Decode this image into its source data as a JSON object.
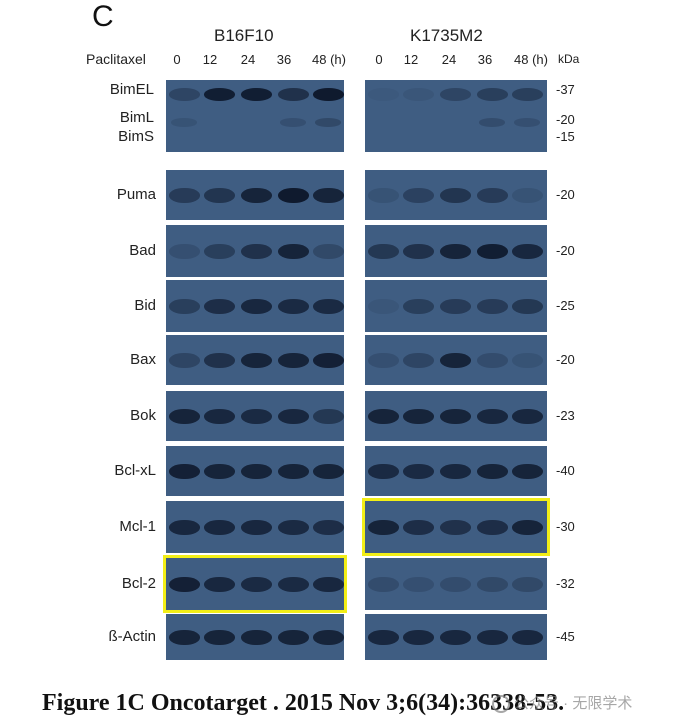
{
  "figure": {
    "panel_letter": "C",
    "treatment_label": "Paclitaxel",
    "unit_label": "kDa",
    "cell_lines": [
      {
        "name": "B16F10",
        "timepoints": [
          "0",
          "12",
          "24",
          "36",
          "48 (h)"
        ]
      },
      {
        "name": "K1735M2",
        "timepoints": [
          "0",
          "12",
          "24",
          "36",
          "48 (h)"
        ]
      }
    ],
    "rows": [
      {
        "labels": [
          "BimEL",
          "BimL",
          "BimS"
        ],
        "mw": [
          "-37",
          "-20",
          "-15"
        ]
      },
      {
        "labels": [
          "Puma"
        ],
        "mw": [
          "-20"
        ]
      },
      {
        "labels": [
          "Bad"
        ],
        "mw": [
          "-20"
        ]
      },
      {
        "labels": [
          "Bid"
        ],
        "mw": [
          "-25"
        ]
      },
      {
        "labels": [
          "Bax"
        ],
        "mw": [
          "-20"
        ]
      },
      {
        "labels": [
          "Bok"
        ],
        "mw": [
          "-23"
        ]
      },
      {
        "labels": [
          "Bcl-xL"
        ],
        "mw": [
          "-40"
        ]
      },
      {
        "labels": [
          "Mcl-1"
        ],
        "mw": [
          "-30"
        ]
      },
      {
        "labels": [
          "Bcl-2"
        ],
        "mw": [
          "-32"
        ]
      },
      {
        "labels": [
          "ß-Actin"
        ],
        "mw": [
          "-45"
        ]
      }
    ],
    "band_intensity": {
      "BimEL": {
        "B16F10": [
          0.35,
          0.95,
          0.95,
          0.65,
          1.0
        ],
        "K1735M2": [
          0.05,
          0.1,
          0.35,
          0.45,
          0.45
        ]
      },
      "BimL": {
        "B16F10": [
          0.15,
          0.0,
          0.0,
          0.2,
          0.3
        ],
        "K1735M2": [
          0.0,
          0.0,
          0.0,
          0.25,
          0.2
        ]
      },
      "Puma": {
        "B16F10": [
          0.5,
          0.6,
          0.85,
          1.0,
          0.85
        ],
        "K1735M2": [
          0.15,
          0.4,
          0.6,
          0.5,
          0.15
        ]
      },
      "Bad": {
        "B16F10": [
          0.2,
          0.45,
          0.65,
          0.85,
          0.3
        ],
        "K1735M2": [
          0.55,
          0.65,
          0.85,
          0.95,
          0.8
        ]
      },
      "Bid": {
        "B16F10": [
          0.45,
          0.7,
          0.8,
          0.75,
          0.75
        ],
        "K1735M2": [
          0.1,
          0.45,
          0.5,
          0.5,
          0.55
        ]
      },
      "Bax": {
        "B16F10": [
          0.35,
          0.65,
          0.85,
          0.85,
          0.9
        ],
        "K1735M2": [
          0.2,
          0.35,
          0.85,
          0.25,
          0.15
        ]
      },
      "Bok": {
        "B16F10": [
          0.85,
          0.8,
          0.75,
          0.8,
          0.55
        ],
        "K1735M2": [
          0.85,
          0.85,
          0.85,
          0.8,
          0.8
        ]
      },
      "Bcl-xL": {
        "B16F10": [
          0.9,
          0.85,
          0.85,
          0.85,
          0.85
        ],
        "K1735M2": [
          0.75,
          0.75,
          0.8,
          0.85,
          0.85
        ]
      },
      "Mcl-1": {
        "B16F10": [
          0.8,
          0.8,
          0.8,
          0.75,
          0.7
        ],
        "K1735M2": [
          0.85,
          0.7,
          0.65,
          0.7,
          0.85
        ]
      },
      "Bcl-2": {
        "B16F10": [
          0.9,
          0.8,
          0.75,
          0.75,
          0.8
        ],
        "K1735M2": [
          0.25,
          0.2,
          0.25,
          0.3,
          0.3
        ]
      },
      "ß-Actin": {
        "B16F10": [
          0.85,
          0.85,
          0.85,
          0.85,
          0.85
        ],
        "K1735M2": [
          0.8,
          0.8,
          0.8,
          0.8,
          0.8
        ]
      }
    },
    "highlighted": [
      {
        "row": "Mcl-1",
        "cell_line": "K1735M2"
      },
      {
        "row": "Bcl-2",
        "cell_line": "B16F10"
      }
    ],
    "highlight_color": "#f2ee17",
    "blot_color": "#3f5d82",
    "band_color": "#0f1a2e"
  },
  "caption": "Figure 1C Oncotarget . 2015 Nov 3;6(34):36338-53.",
  "watermark": "公众号 · 无限学术"
}
